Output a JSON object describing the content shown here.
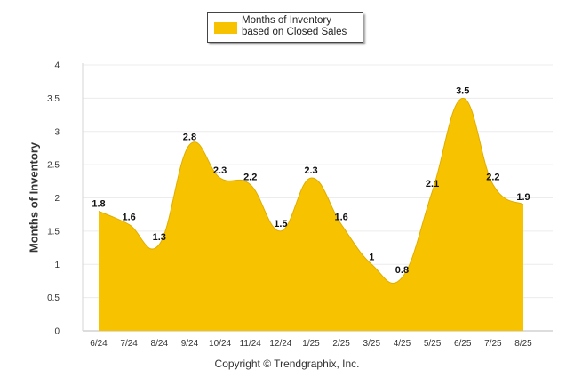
{
  "chart_data": {
    "type": "area",
    "categories": [
      "6/24",
      "7/24",
      "8/24",
      "9/24",
      "10/24",
      "11/24",
      "12/24",
      "1/25",
      "2/25",
      "3/25",
      "4/25",
      "5/25",
      "6/25",
      "7/25",
      "8/25"
    ],
    "series": [
      {
        "name": "Months of Inventory based on Closed Sales",
        "values": [
          1.8,
          1.6,
          1.3,
          2.8,
          2.3,
          2.2,
          1.5,
          2.3,
          1.6,
          1.0,
          0.8,
          2.1,
          3.5,
          2.2,
          1.9
        ],
        "labels": [
          "1.8",
          "1.6",
          "1.3",
          "2.8",
          "2.3",
          "2.2",
          "1.5",
          "2.3",
          "1.6",
          "1",
          "0.8",
          "2.1",
          "3.5",
          "2.2",
          "1.9"
        ]
      }
    ],
    "ylabel": "Months of Inventory",
    "xlabel": "",
    "ylim": [
      0,
      4
    ],
    "yticks": [
      "0",
      "0.5",
      "1",
      "1.5",
      "2",
      "2.5",
      "3",
      "3.5",
      "4"
    ],
    "grid": true,
    "legend": "top-center",
    "color": "#f7c200"
  },
  "footer": {
    "copyright": "Copyright © Trendgraphix, Inc."
  }
}
